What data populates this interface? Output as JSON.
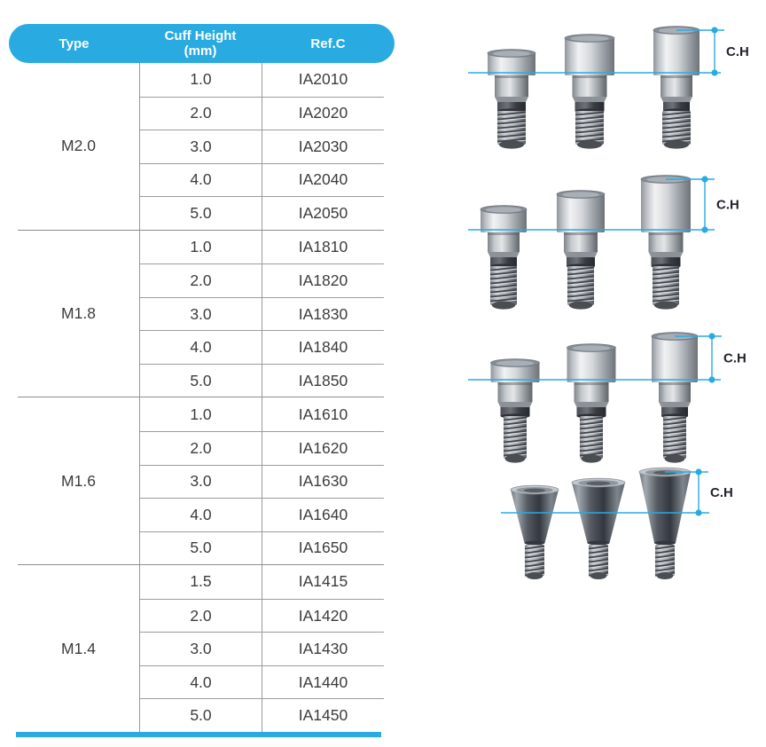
{
  "colors": {
    "accent": "#29ABE2"
  },
  "table": {
    "header": {
      "type": "Type",
      "cuff_line1": "Cuff Height",
      "cuff_line2": "(mm)",
      "ref": "Ref.C"
    },
    "groups": [
      {
        "type": "M2.0",
        "rows": [
          [
            "1.0",
            "IA2010"
          ],
          [
            "2.0",
            "IA2020"
          ],
          [
            "3.0",
            "IA2030"
          ],
          [
            "4.0",
            "IA2040"
          ],
          [
            "5.0",
            "IA2050"
          ]
        ]
      },
      {
        "type": "M1.8",
        "rows": [
          [
            "1.0",
            "IA1810"
          ],
          [
            "2.0",
            "IA1820"
          ],
          [
            "3.0",
            "IA1830"
          ],
          [
            "4.0",
            "IA1840"
          ],
          [
            "5.0",
            "IA1850"
          ]
        ]
      },
      {
        "type": "M1.6",
        "rows": [
          [
            "1.0",
            "IA1610"
          ],
          [
            "2.0",
            "IA1620"
          ],
          [
            "3.0",
            "IA1630"
          ],
          [
            "4.0",
            "IA1640"
          ],
          [
            "5.0",
            "IA1650"
          ]
        ]
      },
      {
        "type": "M1.4",
        "rows": [
          [
            "1.5",
            "IA1415"
          ],
          [
            "2.0",
            "IA1420"
          ],
          [
            "3.0",
            "IA1430"
          ],
          [
            "4.0",
            "IA1440"
          ],
          [
            "5.0",
            "IA1450"
          ]
        ]
      }
    ]
  },
  "figures": [
    {
      "name": "healing-abutments-m2.0",
      "label": "C.H"
    },
    {
      "name": "healing-abutments-m1.8",
      "label": "C.H"
    },
    {
      "name": "healing-abutments-m1.6",
      "label": "C.H"
    },
    {
      "name": "healing-abutments-m1.4",
      "label": "C.H"
    }
  ]
}
